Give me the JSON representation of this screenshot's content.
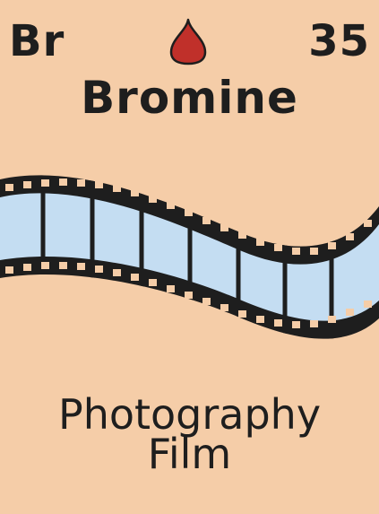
{
  "element": {
    "symbol": "Br",
    "atomic_number": "35",
    "name": "Bromine"
  },
  "icons": {
    "top": "liquid-drop-icon",
    "center": "film-strip-icon"
  },
  "caption": {
    "line1": "Photography",
    "line2": "Film"
  },
  "colors": {
    "background": "#f5cda8",
    "text": "#1e1e1e",
    "drop": "#c0302a",
    "film_frames": "#c4ddf2"
  }
}
